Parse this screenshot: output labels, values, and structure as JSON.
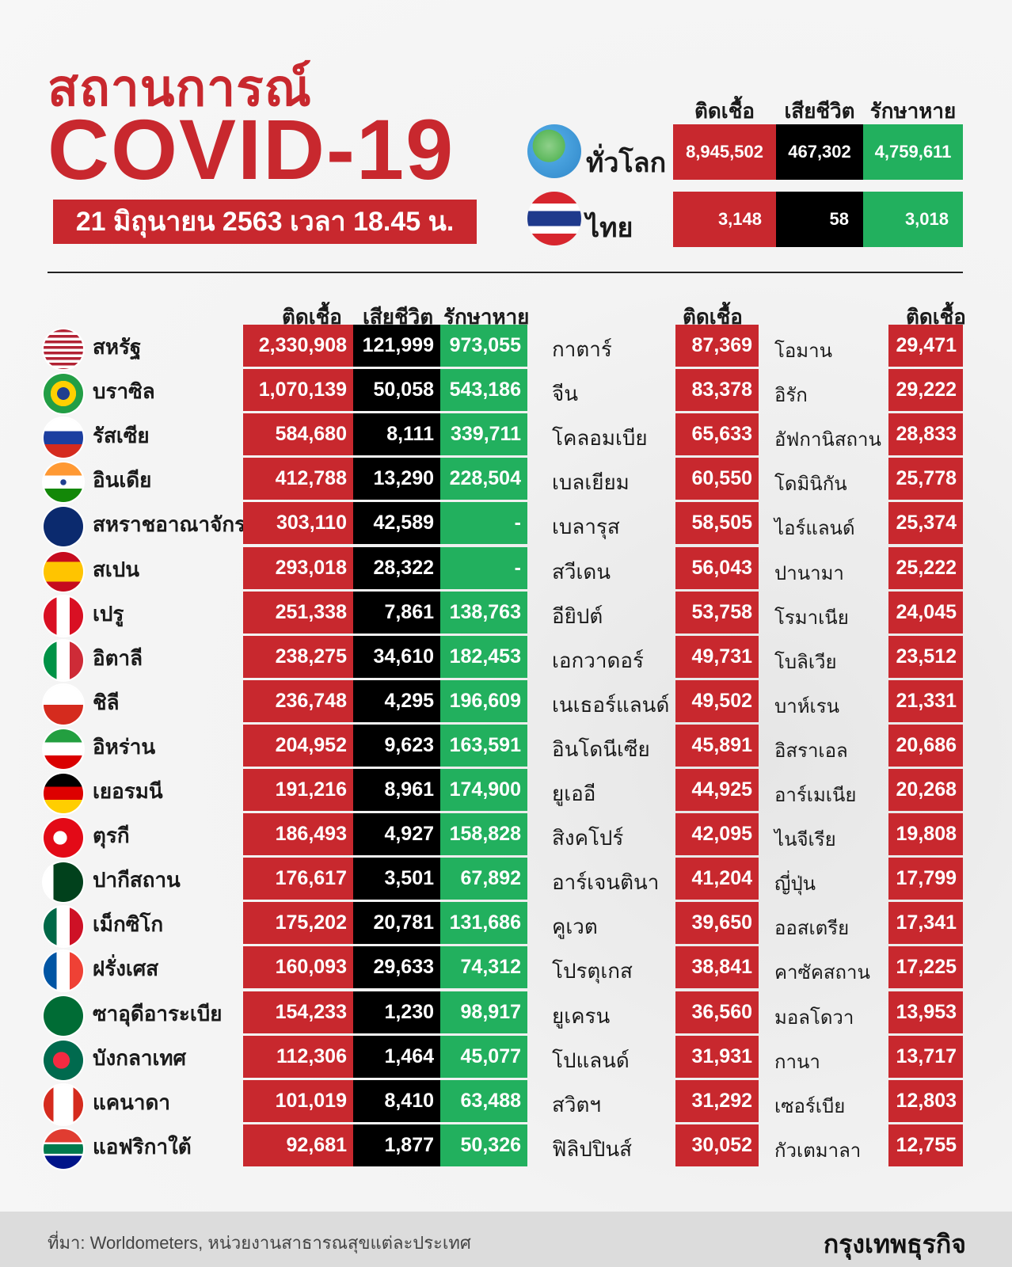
{
  "header": {
    "title_th": "สถานการณ์",
    "title_en": "COVID-19",
    "date": "21 มิถุนายน 2563 เวลา 18.45 น."
  },
  "summary": {
    "headers": [
      "ติดเชื้อ",
      "เสียชีวิต",
      "รักษาหาย"
    ],
    "world": {
      "label": "ทั่วโลก",
      "icon": "globe-icon",
      "infected": "8,945,502",
      "deaths": "467,302",
      "recovered": "4,759,611"
    },
    "thailand": {
      "label": "ไทย",
      "icon": "thailand-flag-icon",
      "infected": "3,148",
      "deaths": "58",
      "recovered": "3,018"
    }
  },
  "table": {
    "headers": {
      "infected": "ติดเชื้อ",
      "deaths": "เสียชีวิต",
      "recovered": "รักษาหาย",
      "mid_infected": "ติดเชื้อ",
      "right_infected": "ติดเชื้อ"
    },
    "rows": [
      {
        "name": "สหรัฐ",
        "flag": "usa",
        "infected": "2,330,908",
        "deaths": "121,999",
        "recovered": "973,055",
        "mid_name": "กาตาร์",
        "mid_infected": "87,369",
        "right_name": "โอมาน",
        "right_infected": "29,471"
      },
      {
        "name": "บราซิล",
        "flag": "brazil",
        "infected": "1,070,139",
        "deaths": "50,058",
        "recovered": "543,186",
        "mid_name": "จีน",
        "mid_infected": "83,378",
        "right_name": "อิรัก",
        "right_infected": "29,222"
      },
      {
        "name": "รัสเซีย",
        "flag": "russia",
        "infected": "584,680",
        "deaths": "8,111",
        "recovered": "339,711",
        "mid_name": "โคลอมเบีย",
        "mid_infected": "65,633",
        "right_name": "อัฟกานิสถาน",
        "right_infected": "28,833"
      },
      {
        "name": "อินเดีย",
        "flag": "india",
        "infected": "412,788",
        "deaths": "13,290",
        "recovered": "228,504",
        "mid_name": "เบลเยียม",
        "mid_infected": "60,550",
        "right_name": "โดมินิกัน",
        "right_infected": "25,778"
      },
      {
        "name": "สหราชอาณาจักร",
        "flag": "uk",
        "infected": "303,110",
        "deaths": "42,589",
        "recovered": "-",
        "mid_name": "เบลารุส",
        "mid_infected": "58,505",
        "right_name": "ไอร์แลนด์",
        "right_infected": "25,374"
      },
      {
        "name": "สเปน",
        "flag": "spain",
        "infected": "293,018",
        "deaths": "28,322",
        "recovered": "-",
        "mid_name": "สวีเดน",
        "mid_infected": "56,043",
        "right_name": "ปานามา",
        "right_infected": "25,222"
      },
      {
        "name": "เปรู",
        "flag": "peru",
        "infected": "251,338",
        "deaths": "7,861",
        "recovered": "138,763",
        "mid_name": "อียิปต์",
        "mid_infected": "53,758",
        "right_name": "โรมาเนีย",
        "right_infected": "24,045"
      },
      {
        "name": "อิตาลี",
        "flag": "italy",
        "infected": "238,275",
        "deaths": "34,610",
        "recovered": "182,453",
        "mid_name": "เอกวาดอร์",
        "mid_infected": "49,731",
        "right_name": "โบลิเวีย",
        "right_infected": "23,512"
      },
      {
        "name": "ชิลี",
        "flag": "chile",
        "infected": "236,748",
        "deaths": "4,295",
        "recovered": "196,609",
        "mid_name": "เนเธอร์แลนด์",
        "mid_infected": "49,502",
        "right_name": "บาห์เรน",
        "right_infected": "21,331"
      },
      {
        "name": "อิหร่าน",
        "flag": "iran",
        "infected": "204,952",
        "deaths": "9,623",
        "recovered": "163,591",
        "mid_name": "อินโดนีเซีย",
        "mid_infected": "45,891",
        "right_name": "อิสราเอล",
        "right_infected": "20,686"
      },
      {
        "name": "เยอรมนี",
        "flag": "germany",
        "infected": "191,216",
        "deaths": "8,961",
        "recovered": "174,900",
        "mid_name": "ยูเออี",
        "mid_infected": "44,925",
        "right_name": "อาร์เมเนีย",
        "right_infected": "20,268"
      },
      {
        "name": "ตุรกี",
        "flag": "turkey",
        "infected": "186,493",
        "deaths": "4,927",
        "recovered": "158,828",
        "mid_name": "สิงคโปร์",
        "mid_infected": "42,095",
        "right_name": "ไนจีเรีย",
        "right_infected": "19,808"
      },
      {
        "name": "ปากีสถาน",
        "flag": "pakistan",
        "infected": "176,617",
        "deaths": "3,501",
        "recovered": "67,892",
        "mid_name": "อาร์เจนตินา",
        "mid_infected": "41,204",
        "right_name": "ญี่ปุ่น",
        "right_infected": "17,799"
      },
      {
        "name": "เม็กซิโก",
        "flag": "mexico",
        "infected": "175,202",
        "deaths": "20,781",
        "recovered": "131,686",
        "mid_name": "คูเวต",
        "mid_infected": "39,650",
        "right_name": "ออสเตรีย",
        "right_infected": "17,341"
      },
      {
        "name": "ฝรั่งเศส",
        "flag": "france",
        "infected": "160,093",
        "deaths": "29,633",
        "recovered": "74,312",
        "mid_name": "โปรตุเกส",
        "mid_infected": "38,841",
        "right_name": "คาซัคสถาน",
        "right_infected": "17,225"
      },
      {
        "name": "ซาอุดีอาระเบีย",
        "flag": "saudi",
        "infected": "154,233",
        "deaths": "1,230",
        "recovered": "98,917",
        "mid_name": "ยูเครน",
        "mid_infected": "36,560",
        "right_name": "มอลโดวา",
        "right_infected": "13,953"
      },
      {
        "name": "บังกลาเทศ",
        "flag": "bangladesh",
        "infected": "112,306",
        "deaths": "1,464",
        "recovered": "45,077",
        "mid_name": "โปแลนด์",
        "mid_infected": "31,931",
        "right_name": "กานา",
        "right_infected": "13,717"
      },
      {
        "name": "แคนาดา",
        "flag": "canada",
        "infected": "101,019",
        "deaths": "8,410",
        "recovered": "63,488",
        "mid_name": "สวิตฯ",
        "mid_infected": "31,292",
        "right_name": "เซอร์เบีย",
        "right_infected": "12,803"
      },
      {
        "name": "แอฟริกาใต้",
        "flag": "southafrica",
        "infected": "92,681",
        "deaths": "1,877",
        "recovered": "50,326",
        "mid_name": "ฟิลิปปินส์",
        "mid_infected": "30,052",
        "right_name": "กัวเตมาลา",
        "right_infected": "12,755"
      }
    ]
  },
  "footer": {
    "source": "ที่มา: Worldometers, หน่วยงานสาธารณสุขแต่ละประเทศ",
    "brand": "กรุงเทพธุรกิจ"
  },
  "colors": {
    "red": "#c8282e",
    "black": "#000000",
    "green": "#22b05e"
  }
}
